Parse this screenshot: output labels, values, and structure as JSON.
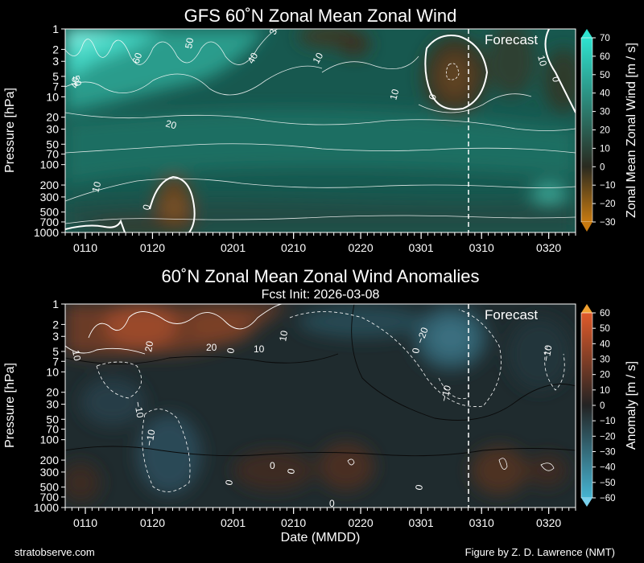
{
  "footer": {
    "website": "stratobserve.com",
    "credit": "Figure by Z. D. Lawrence (NMT)"
  },
  "chart_data": [
    {
      "type": "heatmap",
      "title": "GFS 60˚N Zonal Mean Zonal Wind",
      "subtitle": "",
      "xlabel": "",
      "ylabel": "Pressure [hPa]",
      "y_scale": "log",
      "ylim": [
        1000,
        1
      ],
      "y_ticks": [
        "1",
        "2",
        "3",
        "5",
        "7",
        "10",
        "20",
        "30",
        "50",
        "70",
        "100",
        "200",
        "300",
        "500",
        "700",
        "1000"
      ],
      "x_range": [
        "2026-01-07",
        "2026-03-24"
      ],
      "x_ticks": [
        "0110",
        "0120",
        "0201",
        "0210",
        "0220",
        "0301",
        "0310",
        "0320"
      ],
      "forecast_label": "Forecast",
      "forecast_start": "2026-03-08",
      "colorbar": {
        "label": "Zonal Mean Zonal Wind [m / s]",
        "ticks": [
          "70",
          "60",
          "50",
          "40",
          "30",
          "20",
          "10",
          "0",
          "−10",
          "−20",
          "−30"
        ],
        "range": [
          -30,
          70
        ],
        "colors": {
          "neg": "#c87a10",
          "zero": "#2a2a20",
          "pos": "#2ee3d0"
        }
      },
      "contour_labels": [
        "50",
        "60",
        "3",
        "40",
        "10",
        "10",
        "0",
        "10",
        "0",
        "50",
        "40",
        "20",
        "10",
        "0"
      ]
    },
    {
      "type": "heatmap",
      "title": "60˚N Zonal Mean Zonal Wind Anomalies",
      "subtitle": "Fcst Init: 2026-03-08",
      "xlabel": "Date (MMDD)",
      "ylabel": "Pressure [hPa]",
      "y_scale": "log",
      "ylim": [
        1000,
        1
      ],
      "y_ticks": [
        "1",
        "2",
        "3",
        "5",
        "7",
        "10",
        "20",
        "30",
        "50",
        "70",
        "100",
        "200",
        "300",
        "500",
        "700",
        "1000"
      ],
      "x_range": [
        "2026-01-07",
        "2026-03-24"
      ],
      "x_ticks": [
        "0110",
        "0120",
        "0201",
        "0210",
        "0220",
        "0301",
        "0310",
        "0320"
      ],
      "forecast_label": "Forecast",
      "forecast_start": "2026-03-08",
      "colorbar": {
        "label": "Anomaly [m / s]",
        "ticks": [
          "60",
          "50",
          "40",
          "30",
          "20",
          "10",
          "0",
          "−10",
          "−20",
          "−30",
          "−40",
          "−50",
          "−60"
        ],
        "range": [
          -60,
          60
        ],
        "colors": {
          "neg": "#46b4d2",
          "zero": "#232323",
          "pos": "#e05a2a"
        }
      },
      "contour_labels": [
        "10",
        "20",
        "10",
        "20",
        "0",
        "10",
        "−20",
        "−10",
        "−10",
        "−10",
        "0",
        "0",
        "0",
        "0",
        "0",
        "−10",
        "0"
      ]
    }
  ]
}
